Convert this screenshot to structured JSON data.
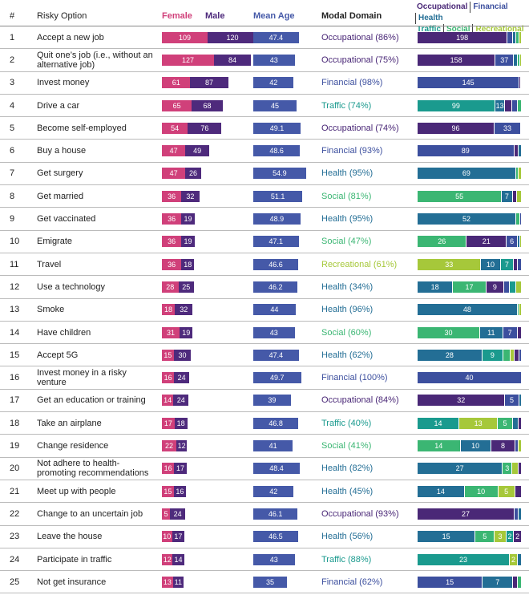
{
  "header": {
    "number": "#",
    "option": "Risky Option",
    "female": "Female",
    "male": "Male",
    "mean_age": "Mean Age",
    "modal_domain": "Modal Domain",
    "female_color": "#d0407a",
    "male_color": "#4e2a7c",
    "mean_age_color": "#4559a8",
    "domains": [
      {
        "name": "Occupational",
        "color": "#4a2877"
      },
      {
        "name": "Financial",
        "color": "#3c4f9e"
      },
      {
        "name": "Health",
        "color": "#236e95"
      },
      {
        "name": "Traffic",
        "color": "#1a9a8e"
      },
      {
        "name": "Social",
        "color": "#3bb673"
      },
      {
        "name": "Recreational",
        "color": "#a6c83a"
      }
    ]
  },
  "rows": [
    {
      "number": 1,
      "option": "Accept a new job",
      "female": 109,
      "male": 120,
      "mean_age": 47.4,
      "modal_domain": "Occupational (86%)",
      "modal_color": "#4a2877",
      "segments": [
        {
          "value": 198,
          "color": "#4a2877"
        },
        {
          "value": 11,
          "color": "#3c4f9e"
        },
        {
          "value": 8,
          "color": "#236e95"
        },
        {
          "value": 6,
          "color": "#3bb673"
        },
        {
          "value": 6,
          "color": "#a6c83a"
        }
      ]
    },
    {
      "number": 2,
      "option": "Quit one’s job (i.e., without an alternative job)",
      "female": 127,
      "male": 84,
      "mean_age": 43,
      "modal_domain": "Occupational (75%)",
      "modal_color": "#4a2877",
      "segments": [
        {
          "value": 158,
          "color": "#4a2877"
        },
        {
          "value": 37,
          "color": "#3c4f9e"
        },
        {
          "value": 8,
          "color": "#236e95"
        },
        {
          "value": 5,
          "color": "#3bb673"
        },
        {
          "value": 3,
          "color": "#a6c83a"
        }
      ]
    },
    {
      "number": 3,
      "option": "Invest money",
      "female": 61,
      "male": 87,
      "mean_age": 42,
      "modal_domain": "Financial (98%)",
      "modal_color": "#3c4f9e",
      "segments": [
        {
          "value": 145,
          "color": "#3c4f9e"
        },
        {
          "value": 2,
          "color": "#4a2877"
        },
        {
          "value": 1,
          "color": "#236e95"
        }
      ]
    },
    {
      "number": 4,
      "option": "Drive a car",
      "female": 65,
      "male": 68,
      "mean_age": 45,
      "modal_domain": "Traffic (74%)",
      "modal_color": "#1a9a8e",
      "segments": [
        {
          "value": 99,
          "color": "#1a9a8e"
        },
        {
          "value": 13,
          "color": "#236e95"
        },
        {
          "value": 9,
          "color": "#4a2877"
        },
        {
          "value": 7,
          "color": "#3c4f9e"
        },
        {
          "value": 5,
          "color": "#3bb673"
        }
      ]
    },
    {
      "number": 5,
      "option": "Become self-employed",
      "female": 54,
      "male": 76,
      "mean_age": 49.1,
      "modal_domain": "Occupational (74%)",
      "modal_color": "#4a2877",
      "segments": [
        {
          "value": 96,
          "color": "#4a2877"
        },
        {
          "value": 33,
          "color": "#3c4f9e"
        },
        {
          "value": 1,
          "color": "#236e95"
        }
      ]
    },
    {
      "number": 6,
      "option": "Buy a house",
      "female": 47,
      "male": 49,
      "mean_age": 48.6,
      "modal_domain": "Financial (93%)",
      "modal_color": "#3c4f9e",
      "segments": [
        {
          "value": 89,
          "color": "#3c4f9e"
        },
        {
          "value": 4,
          "color": "#4a2877"
        },
        {
          "value": 3,
          "color": "#236e95"
        }
      ]
    },
    {
      "number": 7,
      "option": "Get surgery",
      "female": 47,
      "male": 26,
      "mean_age": 54.9,
      "modal_domain": "Health (95%)",
      "modal_color": "#236e95",
      "segments": [
        {
          "value": 69,
          "color": "#236e95"
        },
        {
          "value": 2,
          "color": "#3bb673"
        },
        {
          "value": 2,
          "color": "#a6c83a"
        }
      ]
    },
    {
      "number": 8,
      "option": "Get married",
      "female": 36,
      "male": 32,
      "mean_age": 51.1,
      "modal_domain": "Social (81%)",
      "modal_color": "#3bb673",
      "segments": [
        {
          "value": 55,
          "color": "#3bb673"
        },
        {
          "value": 7,
          "color": "#236e95"
        },
        {
          "value": 3,
          "color": "#4a2877"
        },
        {
          "value": 3,
          "color": "#a6c83a"
        }
      ]
    },
    {
      "number": 9,
      "option": "Get vaccinated",
      "female": 36,
      "male": 19,
      "mean_age": 48.9,
      "modal_domain": "Health (95%)",
      "modal_color": "#236e95",
      "segments": [
        {
          "value": 52,
          "color": "#236e95"
        },
        {
          "value": 2,
          "color": "#3bb673"
        },
        {
          "value": 1,
          "color": "#3c4f9e"
        }
      ]
    },
    {
      "number": 10,
      "option": "Emigrate",
      "female": 36,
      "male": 19,
      "mean_age": 47.1,
      "modal_domain": "Social (47%)",
      "modal_color": "#3bb673",
      "segments": [
        {
          "value": 26,
          "color": "#3bb673"
        },
        {
          "value": 21,
          "color": "#4a2877"
        },
        {
          "value": 6,
          "color": "#3c4f9e"
        },
        {
          "value": 1,
          "color": "#236e95"
        },
        {
          "value": 1,
          "color": "#a6c83a"
        }
      ]
    },
    {
      "number": 11,
      "option": "Travel",
      "female": 36,
      "male": 18,
      "mean_age": 46.6,
      "modal_domain": "Recreational (61%)",
      "modal_color": "#a6c83a",
      "segments": [
        {
          "value": 33,
          "color": "#a6c83a"
        },
        {
          "value": 10,
          "color": "#236e95"
        },
        {
          "value": 7,
          "color": "#1a9a8e"
        },
        {
          "value": 2,
          "color": "#4a2877"
        },
        {
          "value": 2,
          "color": "#3c4f9e"
        }
      ]
    },
    {
      "number": 12,
      "option": "Use a technology",
      "female": 28,
      "male": 25,
      "mean_age": 46.2,
      "modal_domain": "Health (34%)",
      "modal_color": "#236e95",
      "segments": [
        {
          "value": 18,
          "color": "#236e95"
        },
        {
          "value": 17,
          "color": "#3bb673"
        },
        {
          "value": 9,
          "color": "#4a2877"
        },
        {
          "value": 3,
          "color": "#3c4f9e"
        },
        {
          "value": 3,
          "color": "#1a9a8e"
        },
        {
          "value": 3,
          "color": "#a6c83a"
        }
      ]
    },
    {
      "number": 13,
      "option": "Smoke",
      "female": 18,
      "male": 32,
      "mean_age": 44,
      "modal_domain": "Health (96%)",
      "modal_color": "#236e95",
      "segments": [
        {
          "value": 48,
          "color": "#236e95"
        },
        {
          "value": 1,
          "color": "#3bb673"
        },
        {
          "value": 1,
          "color": "#a6c83a"
        }
      ]
    },
    {
      "number": 14,
      "option": "Have children",
      "female": 31,
      "male": 19,
      "mean_age": 43,
      "modal_domain": "Social (60%)",
      "modal_color": "#3bb673",
      "segments": [
        {
          "value": 30,
          "color": "#3bb673"
        },
        {
          "value": 11,
          "color": "#236e95"
        },
        {
          "value": 7,
          "color": "#3c4f9e"
        },
        {
          "value": 2,
          "color": "#4a2877"
        }
      ]
    },
    {
      "number": 15,
      "option": "Accept 5G",
      "female": 15,
      "male": 30,
      "mean_age": 47.4,
      "modal_domain": "Health (62%)",
      "modal_color": "#236e95",
      "segments": [
        {
          "value": 28,
          "color": "#236e95"
        },
        {
          "value": 9,
          "color": "#1a9a8e"
        },
        {
          "value": 3,
          "color": "#3bb673"
        },
        {
          "value": 2,
          "color": "#a6c83a"
        },
        {
          "value": 2,
          "color": "#4a2877"
        },
        {
          "value": 1,
          "color": "#3c4f9e"
        }
      ]
    },
    {
      "number": 16,
      "option": "Invest money in a risky venture",
      "female": 16,
      "male": 24,
      "mean_age": 49.7,
      "modal_domain": "Financial (100%)",
      "modal_color": "#3c4f9e",
      "segments": [
        {
          "value": 40,
          "color": "#3c4f9e"
        }
      ]
    },
    {
      "number": 17,
      "option": "Get an education or training",
      "female": 14,
      "male": 24,
      "mean_age": 39,
      "modal_domain": "Occupational (84%)",
      "modal_color": "#4a2877",
      "segments": [
        {
          "value": 32,
          "color": "#4a2877"
        },
        {
          "value": 5,
          "color": "#3c4f9e"
        },
        {
          "value": 1,
          "color": "#236e95"
        }
      ]
    },
    {
      "number": 18,
      "option": "Take an airplane",
      "female": 17,
      "male": 18,
      "mean_age": 46.8,
      "modal_domain": "Traffic (40%)",
      "modal_color": "#1a9a8e",
      "segments": [
        {
          "value": 14,
          "color": "#1a9a8e"
        },
        {
          "value": 13,
          "color": "#a6c83a"
        },
        {
          "value": 5,
          "color": "#3bb673"
        },
        {
          "value": 2,
          "color": "#236e95"
        },
        {
          "value": 1,
          "color": "#4a2877"
        }
      ]
    },
    {
      "number": 19,
      "option": "Change residence",
      "female": 22,
      "male": 12,
      "mean_age": 41,
      "modal_domain": "Social (41%)",
      "modal_color": "#3bb673",
      "segments": [
        {
          "value": 14,
          "color": "#3bb673"
        },
        {
          "value": 10,
          "color": "#236e95"
        },
        {
          "value": 8,
          "color": "#4a2877"
        },
        {
          "value": 1,
          "color": "#3c4f9e"
        },
        {
          "value": 1,
          "color": "#a6c83a"
        }
      ]
    },
    {
      "number": 20,
      "option": "Not adhere to health-promoting recommendations",
      "female": 16,
      "male": 17,
      "mean_age": 48.4,
      "modal_domain": "Health (82%)",
      "modal_color": "#236e95",
      "segments": [
        {
          "value": 27,
          "color": "#236e95"
        },
        {
          "value": 3,
          "color": "#3bb673"
        },
        {
          "value": 2,
          "color": "#a6c83a"
        },
        {
          "value": 1,
          "color": "#4a2877"
        }
      ]
    },
    {
      "number": 21,
      "option": "Meet up with people",
      "female": 15,
      "male": 16,
      "mean_age": 42,
      "modal_domain": "Health (45%)",
      "modal_color": "#236e95",
      "segments": [
        {
          "value": 14,
          "color": "#236e95"
        },
        {
          "value": 10,
          "color": "#3bb673"
        },
        {
          "value": 5,
          "color": "#a6c83a"
        },
        {
          "value": 2,
          "color": "#4a2877"
        }
      ]
    },
    {
      "number": 22,
      "option": "Change to an uncertain job",
      "female": 5,
      "male": 24,
      "mean_age": 46.1,
      "modal_domain": "Occupational (93%)",
      "modal_color": "#4a2877",
      "segments": [
        {
          "value": 27,
          "color": "#4a2877"
        },
        {
          "value": 1,
          "color": "#3c4f9e"
        },
        {
          "value": 1,
          "color": "#236e95"
        }
      ]
    },
    {
      "number": 23,
      "option": "Leave the house",
      "female": 10,
      "male": 17,
      "mean_age": 46.5,
      "modal_domain": "Health (56%)",
      "modal_color": "#236e95",
      "segments": [
        {
          "value": 15,
          "color": "#236e95"
        },
        {
          "value": 5,
          "color": "#3bb673"
        },
        {
          "value": 3,
          "color": "#a6c83a"
        },
        {
          "value": 2,
          "color": "#1a9a8e"
        },
        {
          "value": 2,
          "color": "#4a2877"
        }
      ]
    },
    {
      "number": 24,
      "option": "Participate in traffic",
      "female": 12,
      "male": 14,
      "mean_age": 43,
      "modal_domain": "Traffic (88%)",
      "modal_color": "#1a9a8e",
      "segments": [
        {
          "value": 23,
          "color": "#1a9a8e"
        },
        {
          "value": 2,
          "color": "#a6c83a"
        },
        {
          "value": 1,
          "color": "#236e95"
        }
      ]
    },
    {
      "number": 25,
      "option": "Not get insurance",
      "female": 13,
      "male": 11,
      "mean_age": 35,
      "modal_domain": "Financial (62%)",
      "modal_color": "#3c4f9e",
      "segments": [
        {
          "value": 15,
          "color": "#3c4f9e"
        },
        {
          "value": 7,
          "color": "#236e95"
        },
        {
          "value": 1,
          "color": "#4a2877"
        },
        {
          "value": 1,
          "color": "#3bb673"
        }
      ]
    }
  ]
}
